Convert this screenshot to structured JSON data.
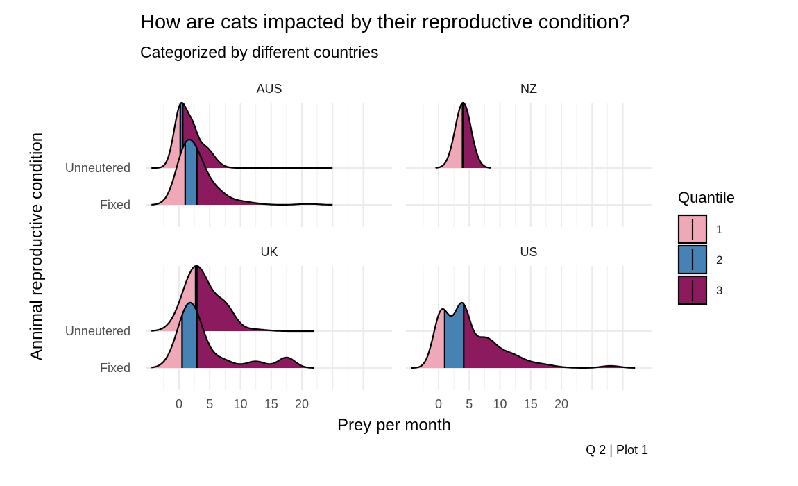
{
  "chart_data": {
    "type": "ridgeline",
    "title": "How are cats impacted by their reproductive condition?",
    "subtitle": "Categorized by different countries",
    "caption": "Q 2 | Plot 1",
    "xlabel": "Prey per month",
    "ylabel": "Annimal reproductive condition",
    "x_ticks": [
      0,
      5,
      10,
      15,
      20
    ],
    "xlim": [
      -5,
      32
    ],
    "y_categories": [
      "Fixed",
      "Unneutered"
    ],
    "grid": true,
    "legend": {
      "title": "Quantile",
      "placement": "right",
      "entries": [
        {
          "label": "1",
          "color": "#EFA8B8"
        },
        {
          "label": "2",
          "color": "#4682B4"
        },
        {
          "label": "3",
          "color": "#8B1A5E"
        }
      ]
    },
    "panels": [
      {
        "name": "AUS",
        "ridges": [
          {
            "category": "Unneutered",
            "x_range": [
              -4.5,
              25
            ],
            "quartiles": [
              0.2,
              0.6
            ],
            "peaks": [
              [
                0.3,
                1.0,
                1.1
              ],
              [
                2.2,
                0.35,
                0.8
              ],
              [
                4.0,
                0.35,
                1.6
              ]
            ]
          },
          {
            "category": "Fixed",
            "x_range": [
              -4.5,
              25
            ],
            "quartiles": [
              1.0,
              2.9
            ],
            "peaks": [
              [
                1.0,
                1.0,
                1.6
              ],
              [
                3.2,
                0.55,
                1.5
              ],
              [
                5.8,
                0.25,
                1.7
              ],
              [
                9.5,
                0.07,
                2.5
              ],
              [
                21.0,
                0.02,
                1.5
              ]
            ]
          }
        ]
      },
      {
        "name": "NZ",
        "ridges": [
          {
            "category": "Unneutered",
            "x_range": [
              -0.5,
              8.5
            ],
            "quartiles": [
              3.9,
              4.0
            ],
            "peaks": [
              [
                4.0,
                1.0,
                1.3
              ]
            ]
          }
        ]
      },
      {
        "name": "UK",
        "ridges": [
          {
            "category": "Unneutered",
            "x_range": [
              -4.5,
              22
            ],
            "quartiles": [
              2.7,
              2.9
            ],
            "peaks": [
              [
                2.8,
                1.0,
                2.2
              ],
              [
                7.5,
                0.35,
                1.6
              ],
              [
                12.0,
                0.03,
                2.0
              ]
            ]
          },
          {
            "category": "Fixed",
            "x_range": [
              -4.5,
              22
            ],
            "quartiles": [
              0.5,
              2.9
            ],
            "peaks": [
              [
                1.8,
                1.0,
                2.0
              ],
              [
                7.0,
                0.12,
                1.8
              ],
              [
                12.5,
                0.1,
                1.6
              ],
              [
                17.5,
                0.16,
                1.4
              ]
            ]
          }
        ]
      },
      {
        "name": "US",
        "ridges": [
          {
            "category": "Fixed",
            "x_range": [
              -4.5,
              32
            ],
            "quartiles": [
              1.0,
              4.1
            ],
            "peaks": [
              [
                0.5,
                0.8,
                1.3
              ],
              [
                3.8,
                0.85,
                1.3
              ],
              [
                7.5,
                0.4,
                1.8
              ],
              [
                11.5,
                0.18,
                2.0
              ],
              [
                16.0,
                0.06,
                2.5
              ],
              [
                28.0,
                0.03,
                1.5
              ]
            ]
          }
        ]
      }
    ]
  }
}
